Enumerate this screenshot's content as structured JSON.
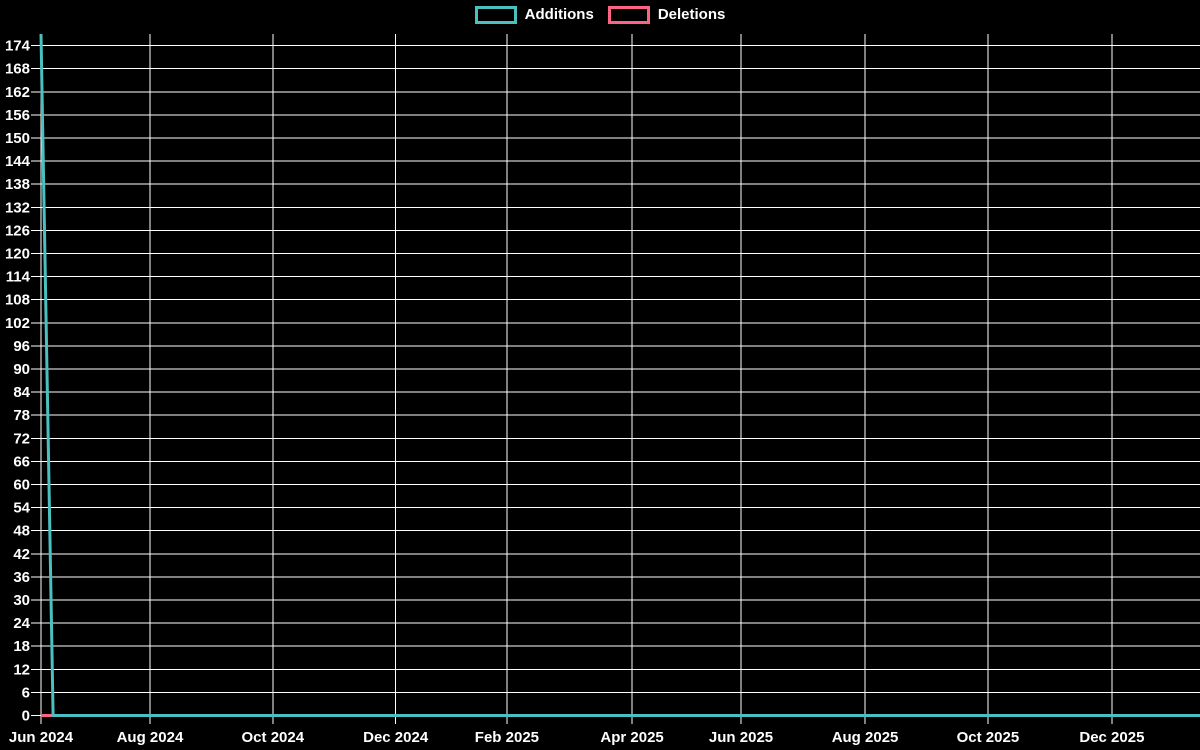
{
  "app": {
    "background_color": "#000000",
    "text_color": "#ffffff"
  },
  "legend": {
    "position": "top-center",
    "items": [
      {
        "label": "Additions",
        "color": "#4bc0c0"
      },
      {
        "label": "Deletions",
        "color": "#ff6384"
      }
    ]
  },
  "chart_data": {
    "type": "line",
    "title": "",
    "xlabel": "",
    "ylabel": "",
    "x_axis": {
      "type": "time",
      "unit": "week",
      "ticks": [
        {
          "label": "Jun 2024",
          "pos": 0.0
        },
        {
          "label": "Aug 2024",
          "pos": 0.094
        },
        {
          "label": "Oct 2024",
          "pos": 0.2
        },
        {
          "label": "Dec 2024",
          "pos": 0.306
        },
        {
          "label": "Feb 2025",
          "pos": 0.402
        },
        {
          "label": "Apr 2025",
          "pos": 0.51
        },
        {
          "label": "Jun 2025",
          "pos": 0.604
        },
        {
          "label": "Aug 2025",
          "pos": 0.711
        },
        {
          "label": "Oct 2025",
          "pos": 0.817
        },
        {
          "label": "Dec 2025",
          "pos": 0.924
        }
      ]
    },
    "y_axis": {
      "min": 0,
      "max": 177,
      "tick_step": 6,
      "first_tick_label": 0,
      "last_tick_label": 174
    },
    "grid": {
      "show": true,
      "color": "#ffffff",
      "axis_color": "#ffffff"
    },
    "series": [
      {
        "name": "Additions",
        "color": "#4bc0c0",
        "line_width": 3,
        "total_weeks": 96,
        "default_value": 0,
        "points": [
          {
            "week": 0,
            "value": 177
          },
          {
            "week": 1,
            "value": 0
          }
        ]
      },
      {
        "name": "Deletions",
        "color": "#ff6384",
        "line_width": 3,
        "total_weeks": 96,
        "default_value": 0,
        "points": [
          {
            "week": 0,
            "value": 0
          }
        ]
      }
    ]
  }
}
